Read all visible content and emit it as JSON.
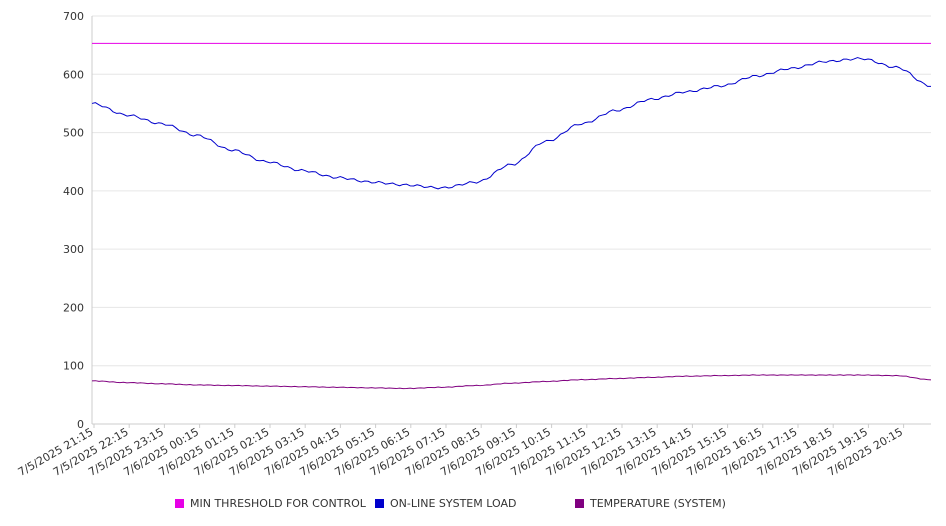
{
  "chart_data": {
    "type": "line",
    "y_ticks": [
      0,
      100,
      200,
      300,
      400,
      500,
      600,
      700
    ],
    "ylim": [
      0,
      700
    ],
    "x_tick_labels": [
      "7/5/2025 21:15",
      "7/5/2025 22:15",
      "7/5/2025 23:15",
      "7/6/2025 00:15",
      "7/6/2025 01:15",
      "7/6/2025 02:15",
      "7/6/2025 03:15",
      "7/6/2025 04:15",
      "7/6/2025 05:15",
      "7/6/2025 06:15",
      "7/6/2025 07:15",
      "7/6/2025 08:15",
      "7/6/2025 09:15",
      "7/6/2025 10:15",
      "7/6/2025 11:15",
      "7/6/2025 12:15",
      "7/6/2025 13:15",
      "7/6/2025 14:15",
      "7/6/2025 15:15",
      "7/6/2025 16:15",
      "7/6/2025 17:15",
      "7/6/2025 18:15",
      "7/6/2025 19:15",
      "7/6/2025 20:15"
    ],
    "x": [
      "7/5/2025 21:00",
      "7/5/2025 22:00",
      "7/5/2025 23:00",
      "7/6/2025 00:00",
      "7/6/2025 01:00",
      "7/6/2025 02:00",
      "7/6/2025 03:00",
      "7/6/2025 04:00",
      "7/6/2025 05:00",
      "7/6/2025 06:00",
      "7/6/2025 07:00",
      "7/6/2025 08:00",
      "7/6/2025 09:00",
      "7/6/2025 10:00",
      "7/6/2025 11:00",
      "7/6/2025 12:00",
      "7/6/2025 13:00",
      "7/6/2025 14:00",
      "7/6/2025 15:00",
      "7/6/2025 16:00",
      "7/6/2025 17:00",
      "7/6/2025 18:00",
      "7/6/2025 19:00",
      "7/6/2025 20:00",
      "7/6/2025 21:00"
    ],
    "grid": true,
    "legend_position": "bottom",
    "series": [
      {
        "name": "MIN THRESHOLD FOR CONTROL",
        "color": "#e600e6",
        "values": [
          653,
          653,
          653,
          653,
          653,
          653,
          653,
          653,
          653,
          653,
          653,
          653,
          653,
          653,
          653,
          653,
          653,
          653,
          653,
          653,
          653,
          653,
          653,
          653,
          653
        ]
      },
      {
        "name": "ON-LINE SYSTEM LOAD",
        "color": "#0000cc",
        "values": [
          550,
          530,
          515,
          495,
          470,
          450,
          435,
          423,
          415,
          410,
          405,
          415,
          445,
          485,
          515,
          538,
          557,
          570,
          580,
          597,
          610,
          622,
          627,
          612,
          580
        ]
      },
      {
        "name": "TEMPERATURE (SYSTEM)",
        "color": "#800080",
        "values": [
          74,
          71,
          69,
          67,
          66,
          65,
          64,
          63,
          62,
          61,
          63,
          66,
          70,
          73,
          76,
          78,
          80,
          82,
          83,
          84,
          84,
          84,
          84,
          83,
          76
        ]
      }
    ]
  }
}
